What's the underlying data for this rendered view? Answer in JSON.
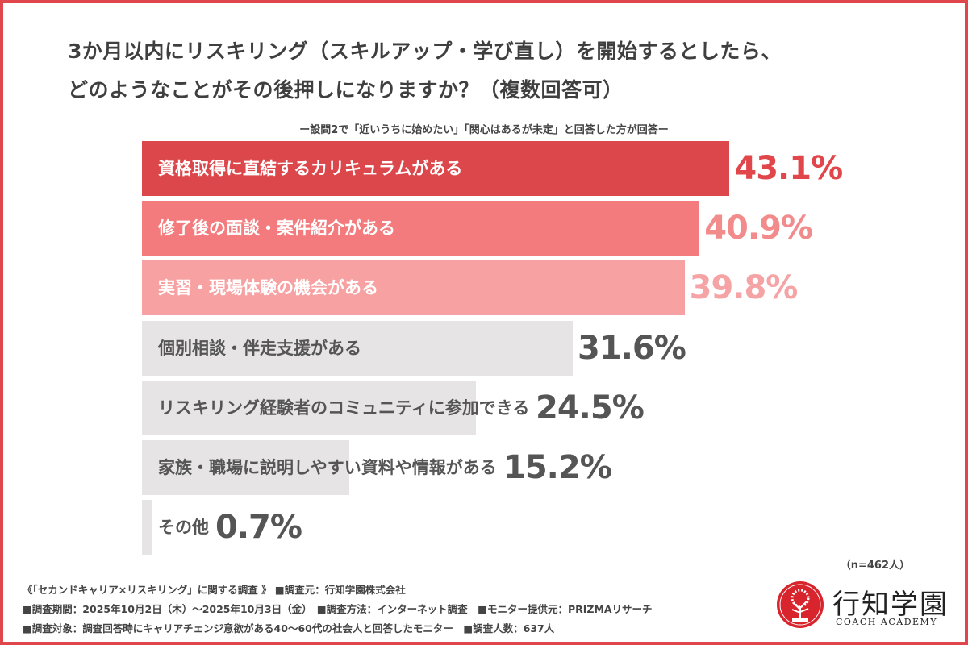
{
  "chart_data": {
    "type": "bar",
    "orientation": "horizontal",
    "title_lines": [
      "3か月以内にリスキリング（スキルアップ・学び直し）を開始するとしたら、",
      "どのようなことがその後押しになりますか？（複数回答可）"
    ],
    "subtitle": "ー設問2で「近いうちに始めたい」「関心はあるが未定」と回答した方が回答ー",
    "categories": [
      "資格取得に直結するカリキュラムがある",
      "修了後の面談・案件紹介がある",
      "実習・現場体験の機会がある",
      "個別相談・伴走支援がある",
      "リスキリング経験者のコミュニティに参加できる",
      "家族・職場に説明しやすい資料や情報がある",
      "その他"
    ],
    "values": [
      43.1,
      40.9,
      39.8,
      31.6,
      24.5,
      15.2,
      0.7
    ],
    "value_labels": [
      "43.1%",
      "40.9%",
      "39.8%",
      "31.6%",
      "24.5%",
      "15.2%",
      "0.7%"
    ],
    "unit": "%",
    "bar_colors": [
      "#dc474b",
      "#f47b7d",
      "#f8a1a2",
      "#e6e4e4",
      "#e6e4e4",
      "#e6e4e4",
      "#e6e4e4"
    ],
    "value_colors": [
      "#e0464a",
      "#f28b8c",
      "#f5a3a4",
      "#555555",
      "#555555",
      "#555555",
      "#555555"
    ],
    "label_colors": [
      "#ffffff",
      "#ffffff",
      "#ffffff",
      "#555555",
      "#555555",
      "#555555",
      "#555555"
    ],
    "sample_size": "（n=462人）",
    "xlim": [
      0,
      50
    ],
    "grid": false,
    "legend": "none"
  },
  "footer": {
    "line1": "《「セカンドキャリア×リスキリング」に関する調査 》 ■調査元：行知学園株式会社",
    "line2": "■調査期間：2025年10月2日（木）～2025年10月3日（金）　■調査方法：インターネット調査　■モニター提供元：PRIZMAリサーチ",
    "line3": "■調査対象：調査回答時にキャリアチェンジ意欲がある40～60代の社会人と回答したモニター　■調査人数：637人"
  },
  "logo": {
    "name": "行知学園",
    "sub": "COACH ACADEMY",
    "badge": "COACH"
  },
  "colors": {
    "frame": "#e0474c"
  }
}
